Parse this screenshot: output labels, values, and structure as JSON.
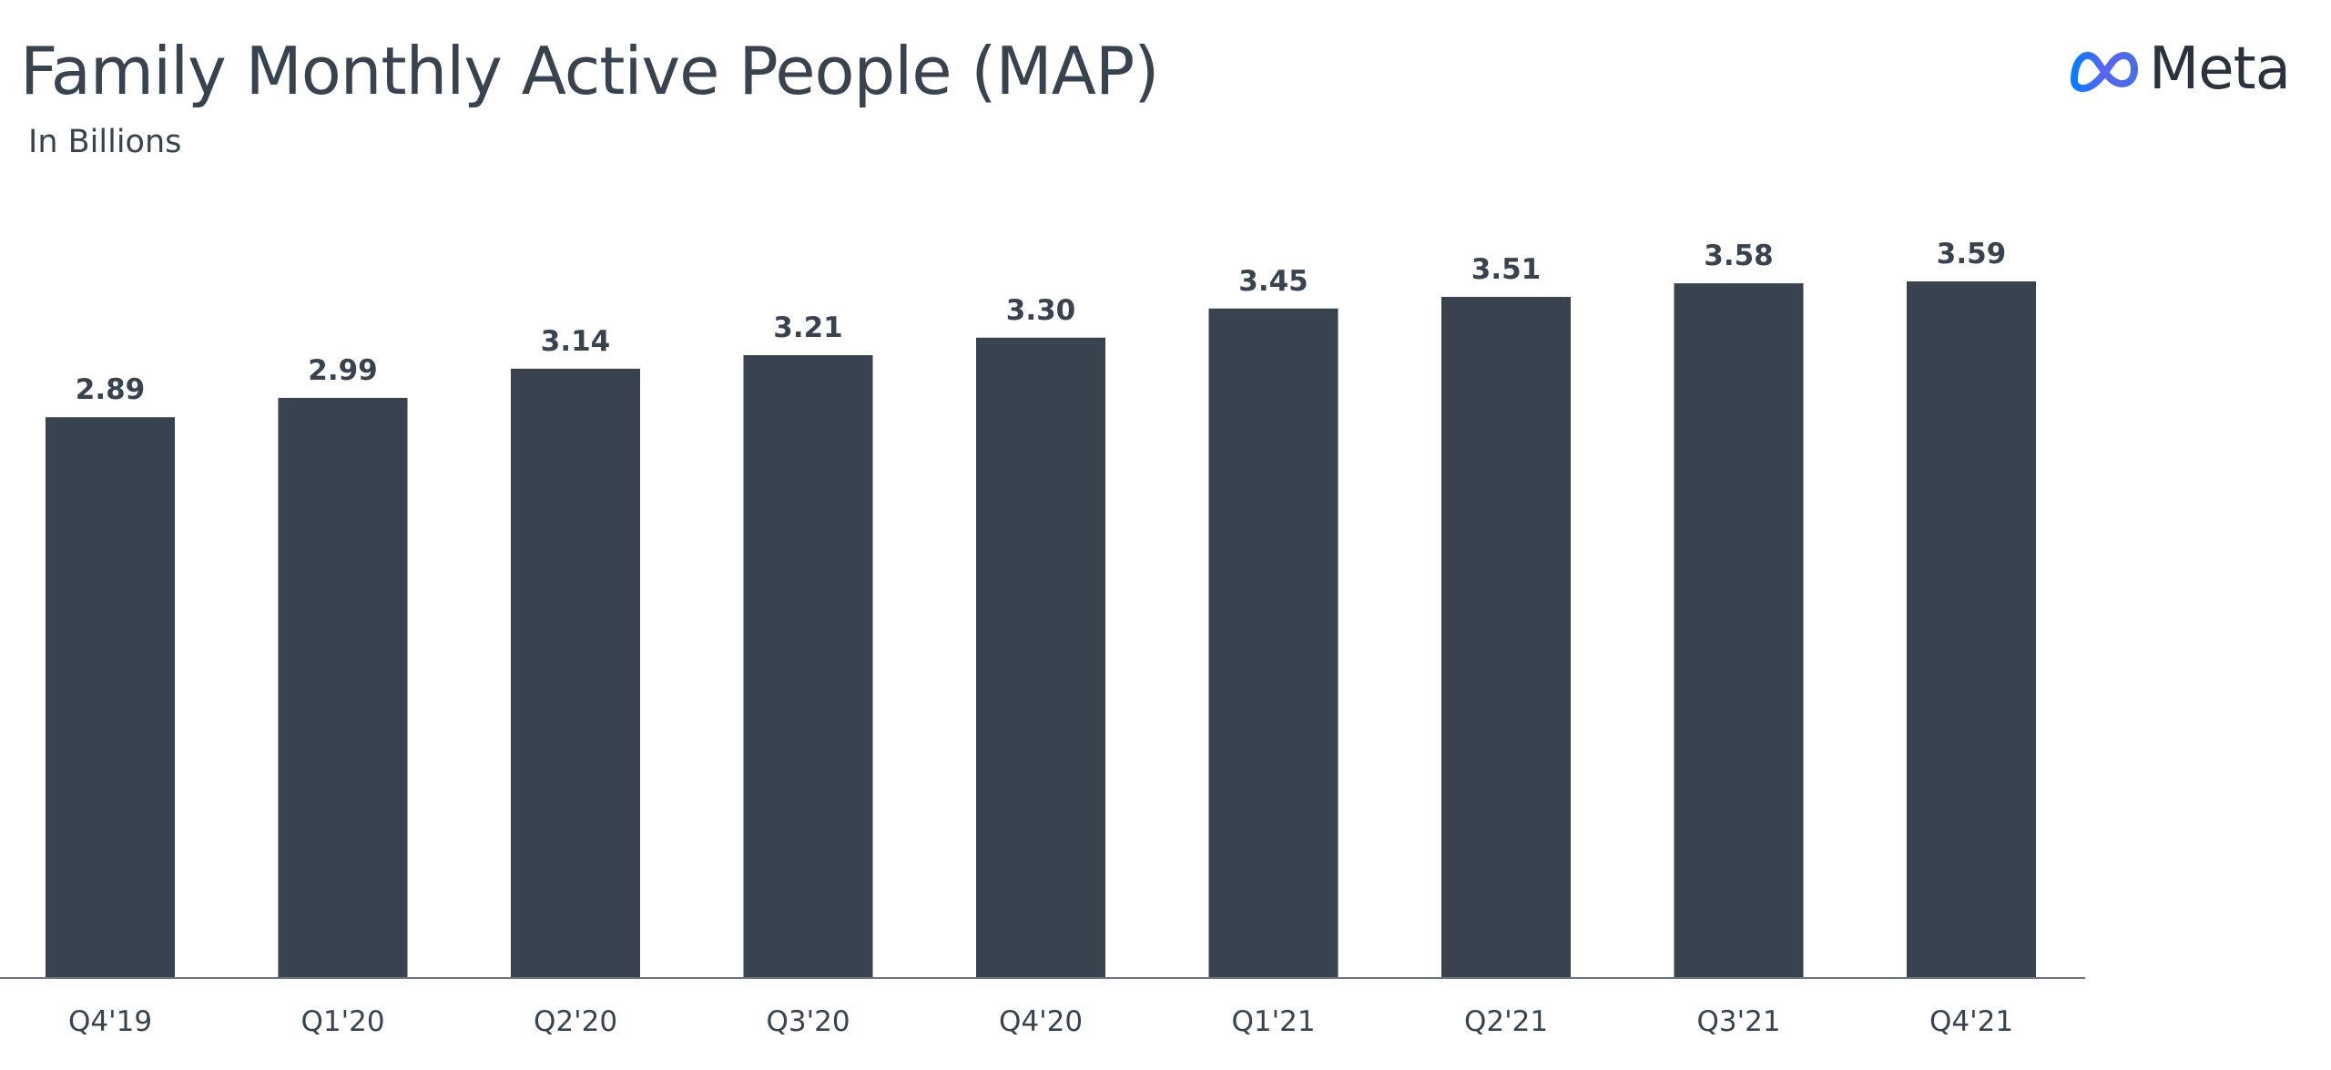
{
  "header": {
    "title": "Family Monthly Active People (MAP)",
    "subtitle": "In Billions"
  },
  "logo": {
    "text": "Meta",
    "icon": "meta-infinity-logo-icon",
    "gradient": [
      "#0a7cff",
      "#5865f2",
      "#4a6ee0"
    ]
  },
  "colors": {
    "bar": "#39434f",
    "text": "#39434f",
    "axis": "#6b7480"
  },
  "chart_data": {
    "type": "bar",
    "categories": [
      "Q4'19",
      "Q1'20",
      "Q2'20",
      "Q3'20",
      "Q4'20",
      "Q1'21",
      "Q2'21",
      "Q3'21",
      "Q4'21"
    ],
    "values": [
      2.89,
      2.99,
      3.14,
      3.21,
      3.3,
      3.45,
      3.51,
      3.58,
      3.59
    ],
    "value_labels": [
      "2.89",
      "2.99",
      "3.14",
      "3.21",
      "3.30",
      "3.45",
      "3.51",
      "3.58",
      "3.59"
    ],
    "title": "Family Monthly Active People (MAP)",
    "subtitle": "In Billions",
    "xlabel": "",
    "ylabel": "",
    "ylim": [
      0,
      3.59
    ],
    "grid": false,
    "legend": "none"
  }
}
